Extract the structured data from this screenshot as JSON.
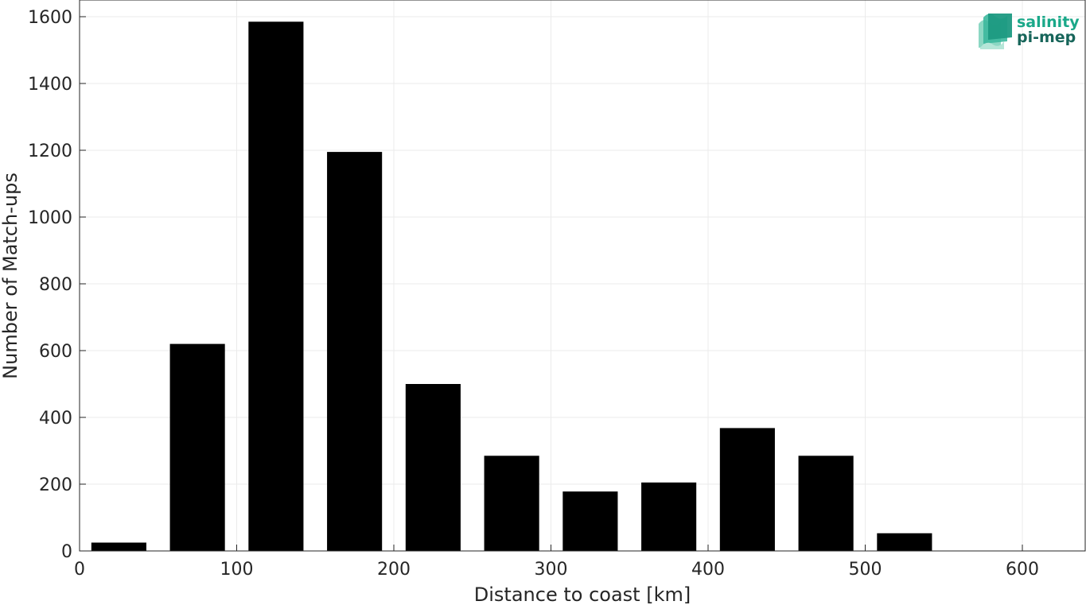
{
  "chart_data": {
    "type": "bar",
    "title": "",
    "xlabel": "Distance to coast [km]",
    "ylabel": "Number of Match-ups",
    "x": [
      25,
      75,
      125,
      175,
      225,
      275,
      325,
      375,
      425,
      475,
      525
    ],
    "values": [
      25,
      620,
      1585,
      1195,
      500,
      285,
      178,
      205,
      368,
      285,
      53
    ],
    "bin_width": 50,
    "xlim": [
      0,
      640
    ],
    "ylim": [
      0,
      1650
    ],
    "xticks": [
      0,
      100,
      200,
      300,
      400,
      500,
      600
    ],
    "yticks": [
      0,
      200,
      400,
      600,
      800,
      1000,
      1200,
      1400,
      1600
    ],
    "grid": true,
    "bar_color": "#000000",
    "grid_color": "#ebebeb"
  },
  "logo": {
    "line1": "salinity",
    "line2": "pi-mep",
    "color1": "#1aa889",
    "color2": "#17655a"
  }
}
